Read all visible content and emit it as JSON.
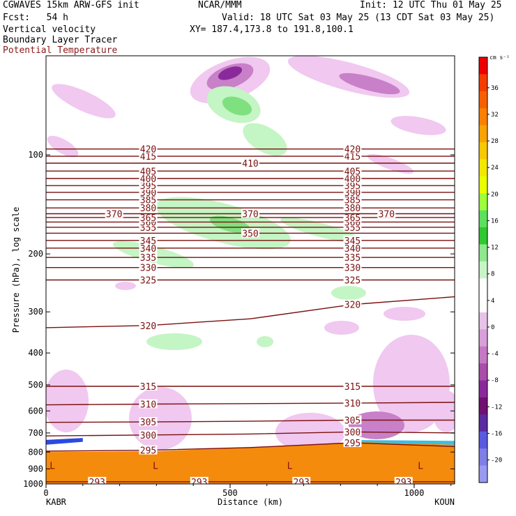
{
  "header": {
    "model": "CGWAVES 15km ARW-GFS init",
    "forecast": "Fcst:   54 h",
    "center": "NCAR/MMM",
    "init": "Init: 12 UTC Thu 01 May 25",
    "valid": "Valid: 18 UTC Sat 03 May 25 (13 CDT Sat 03 May 25)",
    "xy": "XY= 187.4,173.8 to 191.8,100.1",
    "field1": "Vertical velocity",
    "field2": "Boundary Layer Tracer",
    "field3": "Potential Temperature"
  },
  "colors": {
    "theta": "#7a0f0f",
    "tracer": "#f58b0c",
    "green_light": "#c4f5c4",
    "green_mid": "#7fe07f",
    "purple_light": "#f0c8f0",
    "purple_mid": "#c880c8",
    "purple_dark": "#8a2a9a"
  },
  "chart_data": {
    "type": "contour-cross-section",
    "ylabel": "Pressure (hPa), log scale",
    "xlabel": "Distance (km)",
    "yscale": "log",
    "ylim": [
      1000,
      50
    ],
    "xlim": [
      0,
      1110
    ],
    "y_ticks": [
      100,
      200,
      300,
      400,
      500,
      600,
      700,
      800,
      900,
      1000
    ],
    "y_tick_labels": [
      "100",
      "200",
      "300",
      "400",
      "500",
      "600",
      "700",
      "800",
      "900",
      "1000"
    ],
    "x_ticks": [
      0,
      500,
      1000
    ],
    "x_tick_labels": [
      "0",
      "500",
      "1000"
    ],
    "endpoints": {
      "left": "KABR",
      "right": "KOUN"
    },
    "colorbar": {
      "unit": "cm s⁻¹",
      "ticks": [
        36,
        32,
        28,
        24,
        20,
        16,
        12,
        8,
        4,
        0,
        -4,
        -8,
        -12,
        -16,
        -20
      ],
      "colors": [
        "#ee0000",
        "#f53c00",
        "#f85f00",
        "#fb8000",
        "#f9a200",
        "#f8c800",
        "#f5e800",
        "#e9ff00",
        "#9cff3a",
        "#5de05d",
        "#30c830",
        "#8ee88e",
        "#c7f5c7",
        "#ffffff",
        "#ffffff",
        "#e8c3e8",
        "#d8a0d8",
        "#c479c4",
        "#a94ea9",
        "#8a2a9a",
        "#701070",
        "#5a2aa0",
        "#5a5ae0",
        "#7f7fe8",
        "#9a9af0"
      ]
    },
    "theta_contours": [
      {
        "value": 293,
        "p": [
          985,
          985,
          985,
          985,
          985
        ],
        "labels": [
          "293",
          "293",
          "293",
          "293"
        ]
      },
      {
        "value": 295,
        "p": [
          795,
          790,
          775,
          750,
          770
        ],
        "labels": [
          "295",
          "295"
        ]
      },
      {
        "value": 300,
        "p": [
          715,
          710,
          705,
          695,
          700
        ],
        "labels": [
          "300",
          "300"
        ]
      },
      {
        "value": 305,
        "p": [
          650,
          648,
          645,
          640,
          640
        ],
        "labels": [
          "305",
          "305"
        ]
      },
      {
        "value": 310,
        "p": [
          575,
          572,
          570,
          568,
          565
        ],
        "labels": [
          "310",
          "310"
        ]
      },
      {
        "value": 315,
        "p": [
          505,
          505,
          505,
          505,
          505
        ],
        "labels": [
          "315",
          "315"
        ]
      },
      {
        "value": 320,
        "p": [
          335,
          330,
          315,
          285,
          270
        ],
        "labels": [
          "320",
          "320"
        ]
      },
      {
        "value": 325,
        "p": [
          240,
          240,
          240,
          240,
          240
        ],
        "labels": [
          "325",
          "325"
        ]
      },
      {
        "value": 330,
        "p": [
          220,
          220,
          220,
          220,
          220
        ],
        "labels": [
          "330",
          "330"
        ]
      },
      {
        "value": 335,
        "p": [
          205,
          205,
          205,
          205,
          205
        ],
        "labels": [
          "335",
          "335"
        ]
      },
      {
        "value": 340,
        "p": [
          192,
          192,
          192,
          192,
          192
        ],
        "labels": [
          "340",
          "340"
        ]
      },
      {
        "value": 345,
        "p": [
          182,
          182,
          182,
          182,
          182
        ],
        "labels": [
          "345",
          "345"
        ]
      },
      {
        "value": 350,
        "p": [
          173,
          173,
          173,
          173,
          173
        ],
        "labels": [
          "350"
        ]
      },
      {
        "value": 355,
        "p": [
          166,
          166,
          166,
          166,
          166
        ],
        "labels": [
          "355",
          "355"
        ]
      },
      {
        "value": 360,
        "p": [
          160,
          160,
          160,
          160,
          160
        ],
        "labels": [
          "360",
          "360"
        ]
      },
      {
        "value": 365,
        "p": [
          155,
          155,
          155,
          155,
          155
        ],
        "labels": [
          "365",
          "365"
        ]
      },
      {
        "value": 370,
        "p": [
          151,
          151,
          151,
          151,
          151
        ],
        "labels": [
          "370",
          "370",
          "370"
        ]
      },
      {
        "value": 380,
        "p": [
          145,
          145,
          145,
          145,
          145
        ],
        "labels": [
          "380",
          "380"
        ]
      },
      {
        "value": 385,
        "p": [
          137,
          137,
          137,
          137,
          137
        ],
        "labels": [
          "385",
          "385"
        ]
      },
      {
        "value": 390,
        "p": [
          130,
          130,
          130,
          130,
          130
        ],
        "labels": [
          "390",
          "390"
        ]
      },
      {
        "value": 395,
        "p": [
          124,
          124,
          124,
          124,
          124
        ],
        "labels": [
          "395",
          "395"
        ]
      },
      {
        "value": 400,
        "p": [
          118,
          118,
          118,
          118,
          118
        ],
        "labels": [
          "400",
          "400"
        ]
      },
      {
        "value": 405,
        "p": [
          112,
          112,
          112,
          112,
          112
        ],
        "labels": [
          "405",
          "405"
        ]
      },
      {
        "value": 410,
        "p": [
          106,
          106,
          106,
          106,
          106
        ],
        "labels": [
          "410"
        ]
      },
      {
        "value": 415,
        "p": [
          101,
          101,
          101,
          101,
          101
        ],
        "labels": [
          "415",
          "415"
        ]
      },
      {
        "value": 420,
        "p": [
          96,
          96,
          96,
          96,
          96
        ],
        "labels": [
          "420",
          "420"
        ]
      }
    ],
    "low_markers": [
      {
        "label": "L",
        "x": 10
      },
      {
        "label": "L",
        "x": 290
      },
      {
        "label": "L",
        "x": 655
      },
      {
        "label": "L",
        "x": 1010
      }
    ]
  }
}
